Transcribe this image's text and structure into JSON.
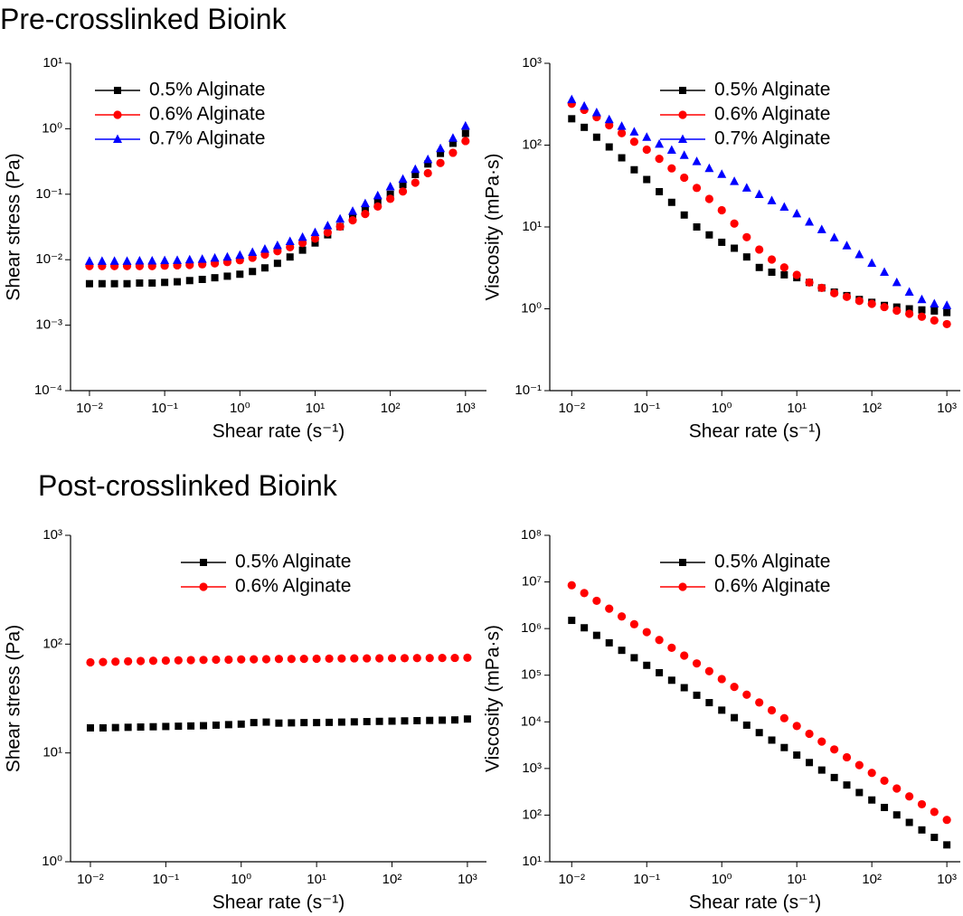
{
  "headings": [
    "Pre-crosslinked Bioink",
    "Post-crosslinked Bioink"
  ],
  "chart_data": [
    {
      "type": "scatter",
      "x_label": "Shear rate (s⁻¹)",
      "y_label": "Shear stress (Pa)",
      "log_x": true,
      "log_y": true,
      "legend": "upper left",
      "xlim": [
        0.0056,
        1900
      ],
      "ylim": [
        0.0001,
        10
      ],
      "xticks": [
        {
          "value": 0.01,
          "label": "10⁻²"
        },
        {
          "value": 0.1,
          "label": "10⁻¹"
        },
        {
          "value": 1,
          "label": "10⁰"
        },
        {
          "value": 10,
          "label": "10¹"
        },
        {
          "value": 100,
          "label": "10²"
        },
        {
          "value": 1000,
          "label": "10³"
        }
      ],
      "yticks": [
        {
          "value": 0.0001,
          "label": "10⁻⁴"
        },
        {
          "value": 0.001,
          "label": "10⁻³"
        },
        {
          "value": 0.01,
          "label": "10⁻²"
        },
        {
          "value": 0.1,
          "label": "10⁻¹"
        },
        {
          "value": 1,
          "label": "10⁰"
        },
        {
          "value": 10,
          "label": "10¹"
        }
      ],
      "x": [
        0.01,
        0.0147,
        0.0215,
        0.0316,
        0.0464,
        0.0681,
        0.1,
        0.147,
        0.215,
        0.316,
        0.464,
        0.681,
        1,
        1.47,
        2.15,
        3.16,
        4.64,
        6.81,
        10,
        14.7,
        21.5,
        31.6,
        46.4,
        68.1,
        100,
        147,
        215,
        316,
        464,
        681,
        1000
      ],
      "series": [
        {
          "name": "0.5% Alginate",
          "color": "#000000",
          "marker": "square",
          "values": [
            0.0043,
            0.0043,
            0.0043,
            0.0043,
            0.0044,
            0.0044,
            0.0045,
            0.0046,
            0.0048,
            0.005,
            0.0053,
            0.0056,
            0.006,
            0.0066,
            0.0075,
            0.0088,
            0.011,
            0.014,
            0.018,
            0.024,
            0.032,
            0.043,
            0.058,
            0.078,
            0.1,
            0.14,
            0.2,
            0.29,
            0.42,
            0.6,
            0.85
          ]
        },
        {
          "name": "0.6% Alginate",
          "color": "#ff0000",
          "marker": "circle",
          "values": [
            0.008,
            0.008,
            0.008,
            0.008,
            0.008,
            0.008,
            0.0081,
            0.0082,
            0.0083,
            0.0085,
            0.0088,
            0.0092,
            0.0098,
            0.0107,
            0.012,
            0.0135,
            0.0155,
            0.018,
            0.021,
            0.026,
            0.032,
            0.04,
            0.05,
            0.065,
            0.085,
            0.11,
            0.15,
            0.21,
            0.3,
            0.43,
            0.65
          ]
        },
        {
          "name": "0.7% Alginate",
          "color": "#0000ff",
          "marker": "triangle",
          "values": [
            0.0095,
            0.0095,
            0.0095,
            0.0095,
            0.0096,
            0.0096,
            0.0097,
            0.0098,
            0.01,
            0.0102,
            0.0106,
            0.011,
            0.0117,
            0.013,
            0.0145,
            0.0165,
            0.019,
            0.022,
            0.026,
            0.033,
            0.042,
            0.055,
            0.072,
            0.095,
            0.13,
            0.17,
            0.24,
            0.34,
            0.5,
            0.72,
            1.1
          ]
        }
      ]
    },
    {
      "type": "scatter",
      "x_label": "Shear rate (s⁻¹)",
      "y_label": "Viscosity (mPa·s)",
      "log_x": true,
      "log_y": true,
      "legend": "upper center",
      "xlim": [
        0.0051,
        1510
      ],
      "ylim": [
        0.1,
        1000
      ],
      "xticks": [
        {
          "value": 0.01,
          "label": "10⁻²"
        },
        {
          "value": 0.1,
          "label": "10⁻¹"
        },
        {
          "value": 1,
          "label": "10⁰"
        },
        {
          "value": 10,
          "label": "10¹"
        },
        {
          "value": 100,
          "label": "10²"
        },
        {
          "value": 1000,
          "label": "10³"
        }
      ],
      "yticks": [
        {
          "value": 0.1,
          "label": "10⁻¹"
        },
        {
          "value": 1,
          "label": "10⁰"
        },
        {
          "value": 10,
          "label": "10¹"
        },
        {
          "value": 100,
          "label": "10²"
        },
        {
          "value": 1000,
          "label": "10³"
        }
      ],
      "x": [
        0.01,
        0.0147,
        0.0215,
        0.0316,
        0.0464,
        0.0681,
        0.1,
        0.147,
        0.215,
        0.316,
        0.464,
        0.681,
        1,
        1.47,
        2.15,
        3.16,
        4.64,
        6.81,
        10,
        14.7,
        21.5,
        31.6,
        46.4,
        68.1,
        100,
        147,
        215,
        316,
        464,
        681,
        1000
      ],
      "series": [
        {
          "name": "0.5% Alginate",
          "color": "#000000",
          "marker": "square",
          "values": [
            210,
            165,
            125,
            95,
            70,
            50,
            38,
            27,
            20,
            14,
            10,
            8,
            6.5,
            5.5,
            4.3,
            3.2,
            2.8,
            2.6,
            2.4,
            2.1,
            1.8,
            1.6,
            1.45,
            1.3,
            1.2,
            1.1,
            1.05,
            1,
            0.97,
            0.94,
            0.9
          ]
        },
        {
          "name": "0.6% Alginate",
          "color": "#ff0000",
          "marker": "circle",
          "values": [
            320,
            270,
            220,
            175,
            140,
            110,
            88,
            68,
            52,
            40,
            30,
            22,
            16,
            11,
            7.5,
            5.3,
            4,
            3.2,
            2.6,
            2.1,
            1.8,
            1.55,
            1.4,
            1.25,
            1.15,
            1.05,
            0.95,
            0.87,
            0.8,
            0.72,
            0.65
          ]
        },
        {
          "name": "0.7% Alginate",
          "color": "#0000ff",
          "marker": "triangle",
          "values": [
            360,
            300,
            250,
            205,
            170,
            145,
            125,
            103,
            87,
            75,
            63,
            52,
            44,
            36,
            30,
            25,
            21,
            17.5,
            14.5,
            11.5,
            9.3,
            7.4,
            5.9,
            4.6,
            3.6,
            2.8,
            2.1,
            1.6,
            1.3,
            1.15,
            1.1
          ]
        }
      ]
    },
    {
      "type": "scatter",
      "x_label": "Shear rate (s⁻¹)",
      "y_label": "Shear stress (Pa)",
      "log_x": true,
      "log_y": true,
      "legend": "upper center",
      "xlim": [
        0.00545,
        1790
      ],
      "ylim": [
        1,
        1000
      ],
      "xticks": [
        {
          "value": 0.01,
          "label": "10⁻²"
        },
        {
          "value": 0.1,
          "label": "10⁻¹"
        },
        {
          "value": 1,
          "label": "10⁰"
        },
        {
          "value": 10,
          "label": "10¹"
        },
        {
          "value": 100,
          "label": "10²"
        },
        {
          "value": 1000,
          "label": "10³"
        }
      ],
      "yticks": [
        {
          "value": 1,
          "label": "10⁰"
        },
        {
          "value": 10,
          "label": "10¹"
        },
        {
          "value": 100,
          "label": "10²"
        },
        {
          "value": 1000,
          "label": "10³"
        }
      ],
      "x": [
        0.01,
        0.0147,
        0.0215,
        0.0316,
        0.0464,
        0.0681,
        0.1,
        0.147,
        0.215,
        0.316,
        0.464,
        0.681,
        1,
        1.47,
        2.15,
        3.16,
        4.64,
        6.81,
        10,
        14.7,
        21.5,
        31.6,
        46.4,
        68.1,
        100,
        147,
        215,
        316,
        464,
        681,
        1000
      ],
      "series": [
        {
          "name": "0.5% Alginate",
          "color": "#000000",
          "marker": "square",
          "values": [
            17,
            17,
            17.1,
            17.2,
            17.3,
            17.4,
            17.5,
            17.6,
            17.7,
            17.8,
            18,
            18.2,
            18.4,
            19,
            19.2,
            18.8,
            18.9,
            19,
            19,
            19.1,
            19.2,
            19.3,
            19.4,
            19.5,
            19.6,
            19.7,
            19.8,
            19.9,
            20,
            20.1,
            20.5
          ]
        },
        {
          "name": "0.6% Alginate",
          "color": "#ff0000",
          "marker": "circle",
          "values": [
            68,
            68.5,
            69,
            69.5,
            70,
            70.3,
            70.6,
            71,
            71.3,
            71.6,
            72,
            72,
            72.3,
            72.5,
            72.7,
            73,
            73,
            73.2,
            73.4,
            73.6,
            73.8,
            74,
            74,
            74.1,
            74.2,
            74.3,
            74.4,
            74.5,
            74.6,
            74.7,
            75
          ]
        }
      ]
    },
    {
      "type": "scatter",
      "x_label": "Shear rate (s⁻¹)",
      "y_label": "Viscosity (mPa·s)",
      "log_x": true,
      "log_y": true,
      "legend": "upper center",
      "xlim": [
        0.0051,
        1510
      ],
      "ylim": [
        10,
        100000000
      ],
      "xticks": [
        {
          "value": 0.01,
          "label": "10⁻²"
        },
        {
          "value": 0.1,
          "label": "10⁻¹"
        },
        {
          "value": 1,
          "label": "10⁰"
        },
        {
          "value": 10,
          "label": "10¹"
        },
        {
          "value": 100,
          "label": "10²"
        },
        {
          "value": 1000,
          "label": "10³"
        }
      ],
      "yticks": [
        {
          "value": 10,
          "label": "10¹"
        },
        {
          "value": 100,
          "label": "10²"
        },
        {
          "value": 1000,
          "label": "10³"
        },
        {
          "value": 10000,
          "label": "10⁴"
        },
        {
          "value": 100000,
          "label": "10⁵"
        },
        {
          "value": 1000000,
          "label": "10⁶"
        },
        {
          "value": 10000000,
          "label": "10⁷"
        },
        {
          "value": 100000000,
          "label": "10⁸"
        }
      ],
      "x": [
        0.01,
        0.0147,
        0.0215,
        0.0316,
        0.0464,
        0.0681,
        0.1,
        0.147,
        0.215,
        0.316,
        0.464,
        0.681,
        1,
        1.47,
        2.15,
        3.16,
        4.64,
        6.81,
        10,
        14.7,
        21.5,
        31.6,
        46.4,
        68.1,
        100,
        147,
        215,
        316,
        464,
        681,
        1000
      ],
      "series": [
        {
          "name": "0.5% Alginate",
          "color": "#000000",
          "marker": "square",
          "values": [
            1500000,
            1040000,
            716000,
            495000,
            342000,
            237000,
            163000,
            113000,
            78000,
            54000,
            37200,
            25800,
            17800,
            12300,
            8500,
            5870,
            4060,
            2810,
            1940,
            1340,
            925,
            640,
            442,
            305,
            211,
            146,
            101,
            69.7,
            48.1,
            33.3,
            23
          ]
        },
        {
          "name": "0.6% Alginate",
          "color": "#ff0000",
          "marker": "circle",
          "values": [
            8500000,
            5780000,
            3940000,
            2670000,
            1820000,
            1240000,
            840000,
            570000,
            387000,
            264000,
            179000,
            122000,
            82800,
            56200,
            38200,
            26000,
            17700,
            12000,
            8150,
            5550,
            3770,
            2560,
            1740,
            1180,
            804,
            547,
            372,
            252,
            171,
            117,
            79
          ]
        }
      ]
    }
  ]
}
